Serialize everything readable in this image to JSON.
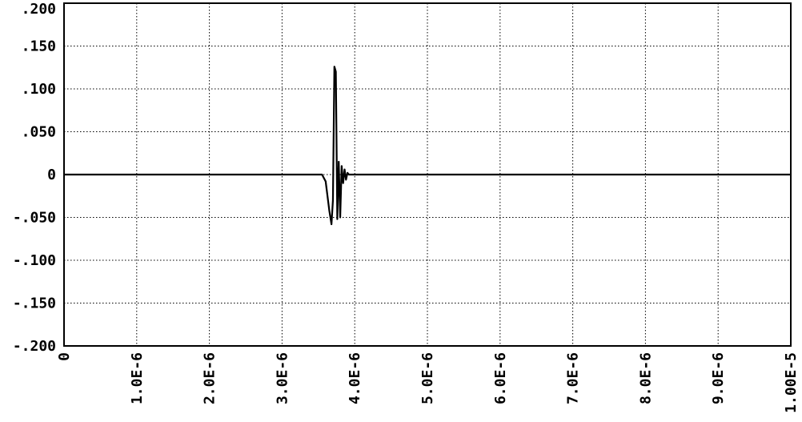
{
  "chart_data": {
    "type": "line",
    "title": "",
    "xlabel": "",
    "ylabel": "",
    "xlim": [
      0,
      1e-05
    ],
    "ylim": [
      -0.2,
      0.2
    ],
    "grid": true,
    "x_ticks": [
      {
        "value": 0,
        "label": "0"
      },
      {
        "value": 1e-06,
        "label": "1.0E-6"
      },
      {
        "value": 2e-06,
        "label": "2.0E-6"
      },
      {
        "value": 3e-06,
        "label": "3.0E-6"
      },
      {
        "value": 4e-06,
        "label": "4.0E-6"
      },
      {
        "value": 5e-06,
        "label": "5.0E-6"
      },
      {
        "value": 6e-06,
        "label": "6.0E-6"
      },
      {
        "value": 7e-06,
        "label": "7.0E-6"
      },
      {
        "value": 8e-06,
        "label": "8.0E-6"
      },
      {
        "value": 9e-06,
        "label": "9.0E-6"
      },
      {
        "value": 1e-05,
        "label": "1.00E-5"
      }
    ],
    "y_ticks": [
      {
        "value": 0.2,
        "label": ".200"
      },
      {
        "value": 0.15,
        "label": ".150"
      },
      {
        "value": 0.1,
        "label": ".100"
      },
      {
        "value": 0.05,
        "label": ".050"
      },
      {
        "value": 0,
        "label": "0"
      },
      {
        "value": -0.05,
        "label": "-.050"
      },
      {
        "value": -0.1,
        "label": "-.100"
      },
      {
        "value": -0.15,
        "label": "-.150"
      },
      {
        "value": -0.2,
        "label": "-.200"
      }
    ],
    "series": [
      {
        "values": [
          [
            0,
            0
          ],
          [
            3.55e-06,
            0
          ],
          [
            3.6e-06,
            -0.008
          ],
          [
            3.65e-06,
            -0.042
          ],
          [
            3.68e-06,
            -0.058
          ],
          [
            3.7e-06,
            -0.03
          ],
          [
            3.72e-06,
            0.126
          ],
          [
            3.74e-06,
            0.12
          ],
          [
            3.76e-06,
            -0.052
          ],
          [
            3.78e-06,
            0.015
          ],
          [
            3.8e-06,
            -0.05
          ],
          [
            3.82e-06,
            0.01
          ],
          [
            3.84e-06,
            -0.01
          ],
          [
            3.86e-06,
            0.006
          ],
          [
            3.88e-06,
            -0.006
          ],
          [
            3.9e-06,
            0.002
          ],
          [
            3.92e-06,
            0
          ],
          [
            1e-05,
            0
          ]
        ]
      }
    ]
  }
}
